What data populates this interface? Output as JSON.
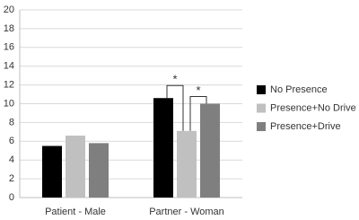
{
  "chart_data": {
    "type": "bar",
    "categories": [
      "Patient - Male",
      "Partner - Woman"
    ],
    "series": [
      {
        "name": "No Presence",
        "color": "#000000",
        "values": [
          5.5,
          10.6
        ]
      },
      {
        "name": "Presence+No Drive",
        "color": "#c0c0c0",
        "values": [
          6.6,
          7.1
        ]
      },
      {
        "name": "Presence+Drive",
        "color": "#7f7f7f",
        "values": [
          5.8,
          10.0
        ]
      }
    ],
    "ylim": [
      0,
      20
    ],
    "yticks": [
      0,
      2,
      4,
      6,
      8,
      10,
      12,
      14,
      16,
      18,
      20
    ],
    "grid": true,
    "legend": "right",
    "annotations": [
      {
        "text": "*"
      },
      {
        "text": "*"
      }
    ]
  }
}
